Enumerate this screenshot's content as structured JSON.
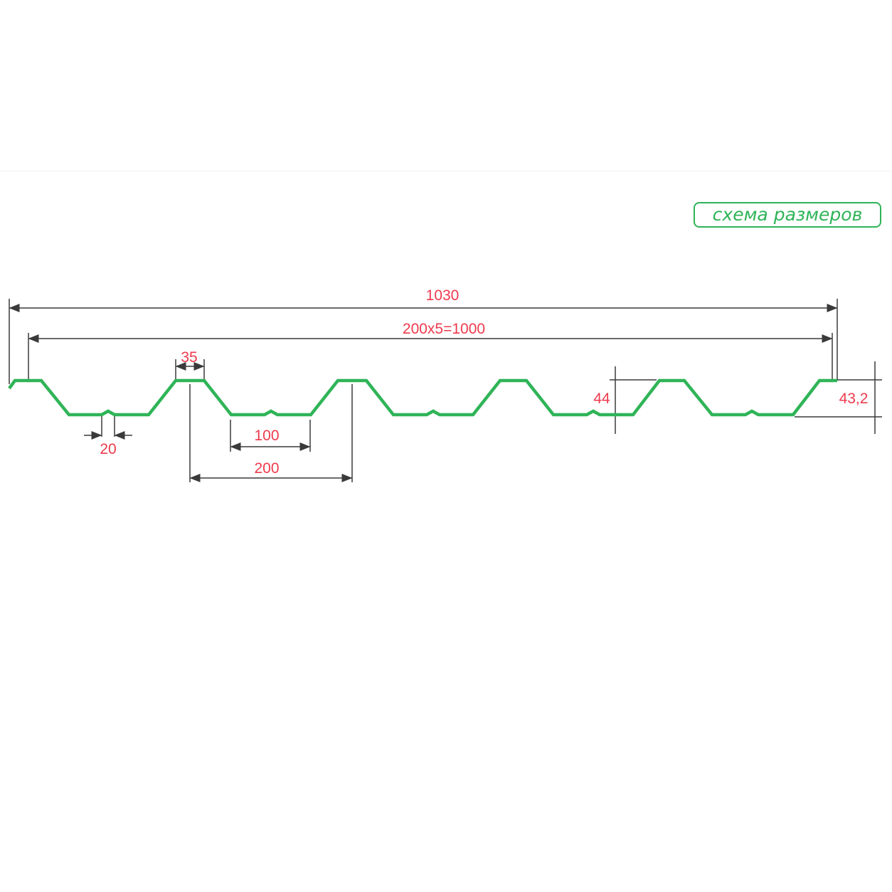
{
  "badge": {
    "label": "схема размеров"
  },
  "colors": {
    "profile": "#2fb457",
    "dimension_text": "#ee3a4d",
    "dimension_line": "#3a3a3a"
  },
  "dimensions": {
    "total_width": "1030",
    "working_width": "200x5=1000",
    "rib_top": "35",
    "stiffener": "20",
    "trough_bottom": "100",
    "pitch": "200",
    "height": "44",
    "edge_height": "43,2"
  }
}
